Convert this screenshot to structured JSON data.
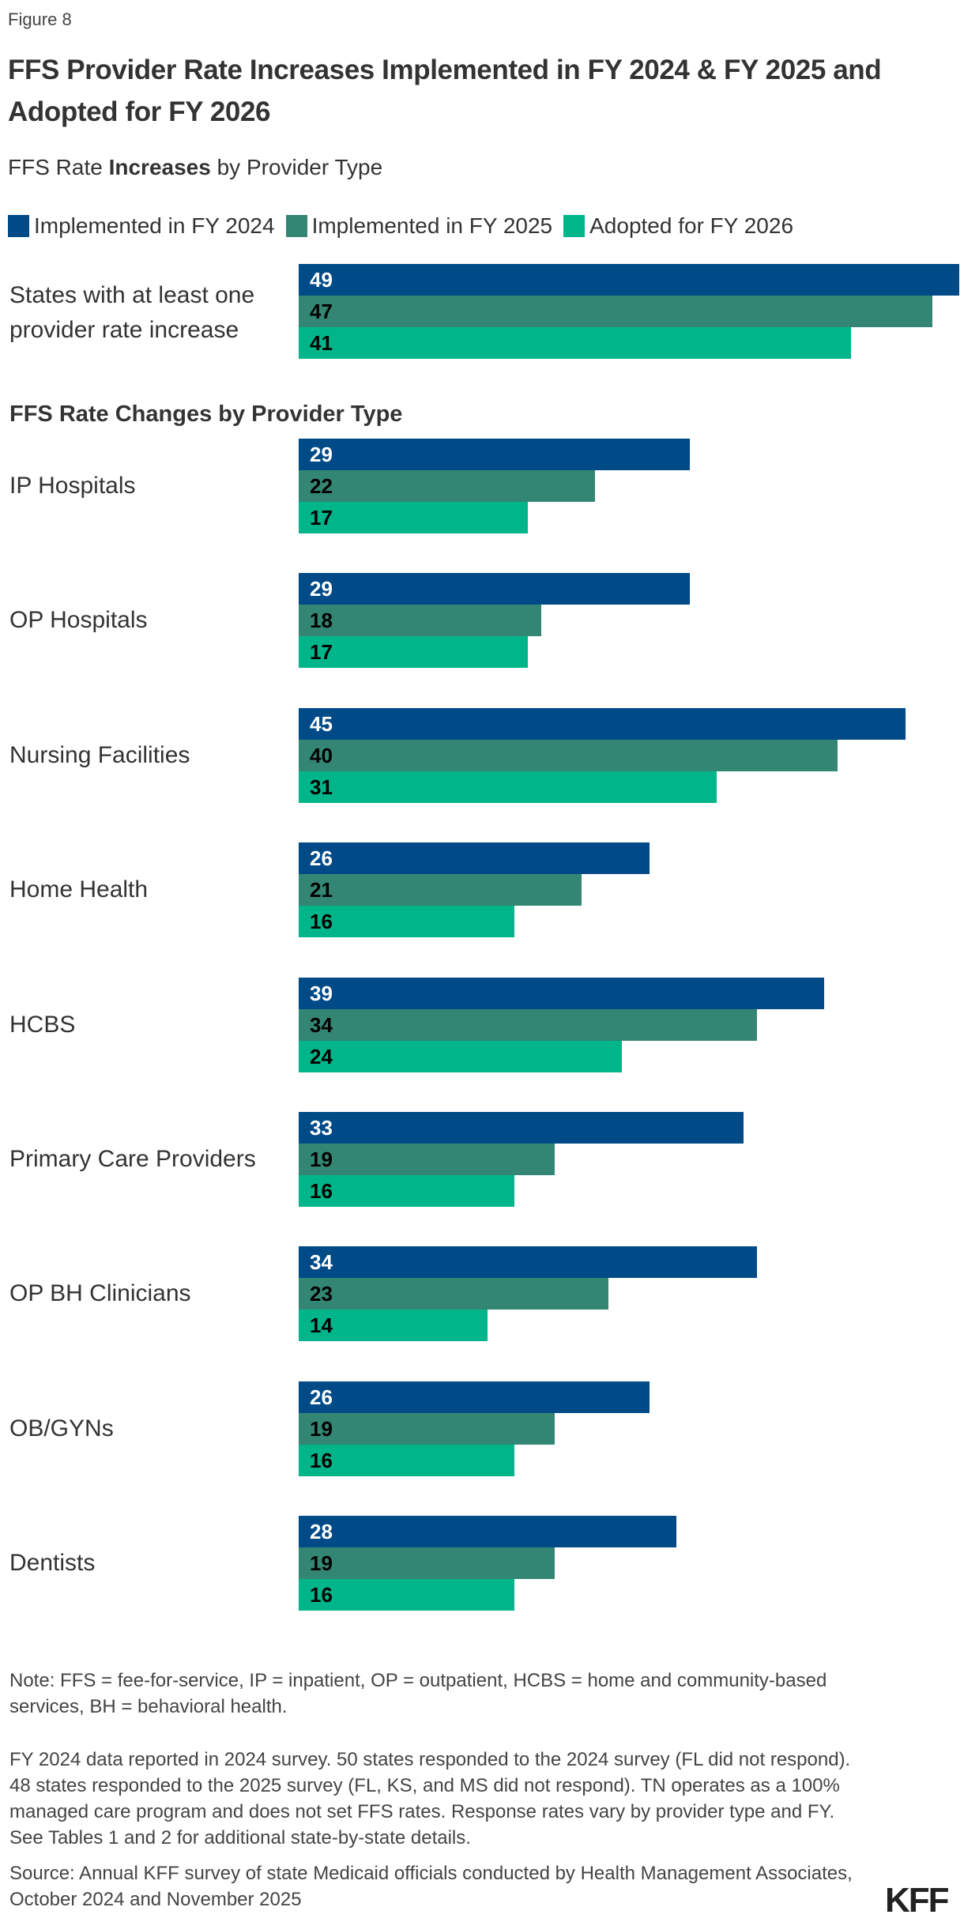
{
  "figure_label": "Figure 8",
  "title": "FFS Provider Rate Increases Implemented in FY 2024 & FY 2025 and Adopted for FY 2026",
  "subtitle": {
    "before": "FFS Rate ",
    "bold": "Increases",
    "after": " by Provider Type"
  },
  "chart_data": {
    "type": "bar",
    "orientation": "horizontal",
    "title": "FFS Provider Rate Increases Implemented in FY 2024 & FY 2025 and Adopted for FY 2026",
    "section_heading": "FFS Rate Changes by Provider Type",
    "legend_placement": "top-left",
    "grid": false,
    "xlim": [
      0,
      49
    ],
    "series": [
      {
        "name": "Implemented in FY 2024",
        "color": "#004a87",
        "label_color": "#ffffff",
        "values": [
          49,
          29,
          29,
          45,
          26,
          39,
          33,
          34,
          26,
          28
        ]
      },
      {
        "name": "Implemented in FY 2025",
        "color": "#348674",
        "label_color": "#000000",
        "values": [
          47,
          22,
          18,
          40,
          21,
          34,
          19,
          23,
          19,
          19
        ]
      },
      {
        "name": "Adopted for FY 2026",
        "color": "#00b589",
        "label_color": "#000000",
        "values": [
          41,
          17,
          17,
          31,
          16,
          24,
          16,
          14,
          16,
          16
        ]
      }
    ],
    "categories": [
      "States with at least one provider rate increase",
      "IP Hospitals",
      "OP Hospitals",
      "Nursing Facilities",
      "Home Health",
      "HCBS",
      "Primary Care Providers",
      "OP BH Clinicians",
      "OB/GYNs",
      "Dentists"
    ]
  },
  "notes": {
    "note": "Note: FFS = fee-for-service, IP = inpatient, OP = outpatient, HCBS = home and community-based services, BH = behavioral health.",
    "detail": "FY 2024 data reported in 2024 survey. 50 states responded to the 2024 survey (FL did not respond). 48 states responded to the 2025 survey (FL, KS, and MS did not respond). TN operates as a 100% managed care program and does not set FFS rates. Response rates vary by provider type and FY. See Tables 1 and 2 for additional state-by-state details.",
    "source": "Source: Annual KFF survey of state Medicaid officials conducted by Health Management Associates, October 2024 and November 2025"
  },
  "logo": "KFF"
}
